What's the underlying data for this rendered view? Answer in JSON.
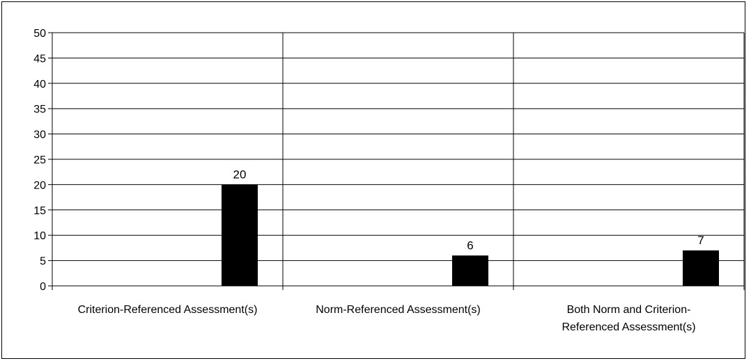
{
  "chart_data": {
    "type": "bar",
    "categories": [
      [
        "Criterion-Referenced Assessment(s)"
      ],
      [
        "Norm-Referenced Assessment(s)"
      ],
      [
        "Both Norm and Criterion-",
        "Referenced Assessment(s)"
      ]
    ],
    "values": [
      20,
      6,
      7
    ],
    "data_labels": [
      "20",
      "6",
      "7"
    ],
    "ylim": [
      0,
      50
    ],
    "yticks": [
      0,
      5,
      10,
      15,
      20,
      25,
      30,
      35,
      40,
      45,
      50
    ],
    "title": "",
    "xlabel": "",
    "ylabel": "",
    "grid": true,
    "bar_color": "#000000"
  }
}
